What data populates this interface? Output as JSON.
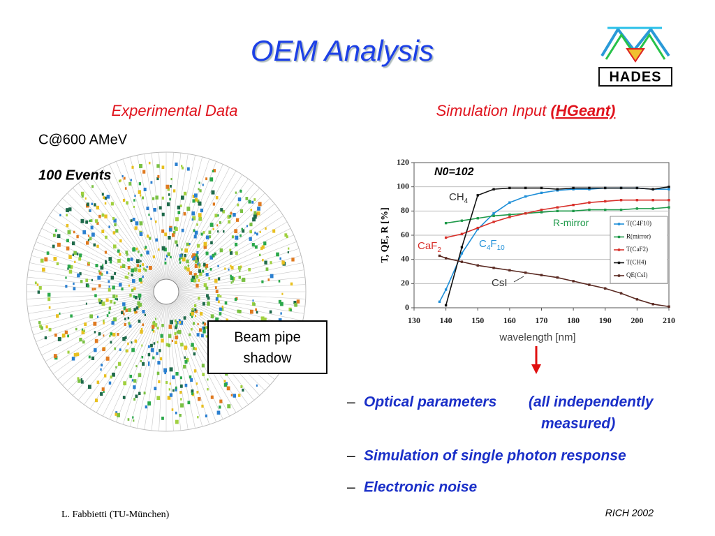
{
  "header": {
    "title": "OEM Analysis",
    "logo": "HADES"
  },
  "left": {
    "heading": "Experimental Data",
    "beam": "C@600 AMeV",
    "events": "100 Events",
    "callout": [
      "Beam pipe",
      "shadow"
    ]
  },
  "right": {
    "heading": "Simulation Input",
    "heading_emph": "(HGeant)"
  },
  "chart_data": {
    "type": "line",
    "xlabel": "wavelength [nm]",
    "ylabel": "T, QE, R  [%]",
    "x": [
      138,
      140,
      145,
      150,
      155,
      160,
      165,
      170,
      175,
      180,
      185,
      190,
      195,
      200,
      205,
      210
    ],
    "series": [
      {
        "name": "T(C4F10)",
        "color": "#1f8fd8",
        "values": [
          5,
          15,
          45,
          65,
          78,
          87,
          92,
          95,
          97,
          98,
          98,
          99,
          99,
          99,
          98,
          98
        ]
      },
      {
        "name": "R(mirror)",
        "color": "#1f9a4a",
        "values": [
          null,
          70,
          72,
          74,
          76,
          77,
          78,
          79,
          80,
          80,
          81,
          81,
          81,
          82,
          82,
          83
        ]
      },
      {
        "name": "T(CaF2)",
        "color": "#d8302a",
        "values": [
          null,
          58,
          61,
          66,
          71,
          75,
          78,
          81,
          83,
          85,
          87,
          88,
          89,
          89,
          89,
          89
        ]
      },
      {
        "name": "T(CH4)",
        "color": "#111111",
        "values": [
          null,
          2,
          50,
          93,
          98,
          99,
          99,
          99,
          98,
          99,
          99,
          99,
          99,
          99,
          98,
          100
        ]
      },
      {
        "name": "QE(CsI)",
        "color": "#5a2a22",
        "values": [
          43,
          41,
          38,
          35,
          33,
          31,
          29,
          27,
          25,
          22,
          19,
          16,
          12,
          7,
          3,
          1
        ]
      }
    ],
    "xlim": [
      130,
      210
    ],
    "ylim": [
      0,
      120
    ],
    "xticks": [
      130,
      140,
      150,
      160,
      170,
      180,
      190,
      200,
      210
    ],
    "yticks": [
      0,
      20,
      40,
      60,
      80,
      100,
      120
    ],
    "grid": true,
    "legend": "right",
    "annotations": [
      {
        "text": "N0=102"
      },
      {
        "text": "CH",
        "sub": "4"
      },
      {
        "text": "R-mirror"
      },
      {
        "text": "C",
        "sub": "4",
        "text2": "F",
        "sub2": "10"
      },
      {
        "text": "CaF",
        "sub": "2"
      },
      {
        "text": "CsI"
      }
    ]
  },
  "bullets": [
    {
      "marker": "–",
      "text": "Optical parameters",
      "note": [
        "(all independently",
        "measured)"
      ]
    },
    {
      "marker": "–",
      "text": "Simulation of  single photon response"
    },
    {
      "marker": "–",
      "text": "Electronic noise"
    }
  ],
  "footer": {
    "author": "L. Fabbietti  (TU-München)",
    "event": "RICH 2002"
  }
}
